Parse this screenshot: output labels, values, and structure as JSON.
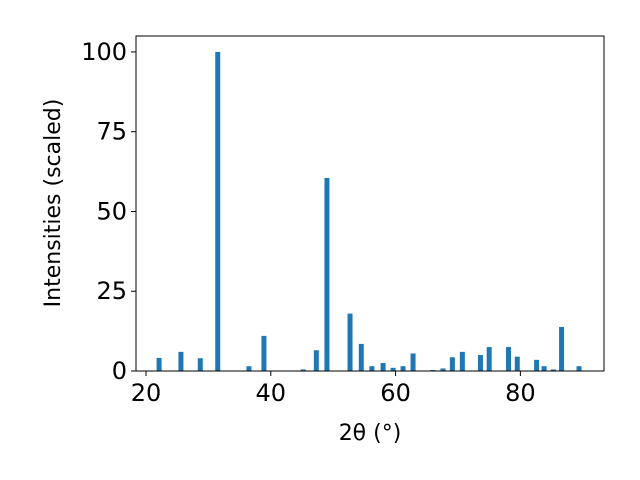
{
  "chart_data": {
    "type": "bar",
    "x_label": "2θ (°)",
    "y_label": "Intensities (scaled)",
    "x": [
      22.1,
      25.6,
      28.7,
      31.5,
      36.5,
      38.9,
      45.2,
      47.3,
      49.0,
      52.7,
      54.5,
      56.2,
      58.0,
      59.6,
      61.2,
      62.8,
      66.0,
      67.6,
      69.1,
      70.7,
      73.6,
      75.0,
      78.1,
      79.5,
      82.6,
      83.8,
      85.3,
      86.6,
      89.4
    ],
    "values": [
      4.1,
      6,
      4,
      100,
      1.5,
      11,
      0.5,
      6.5,
      60.5,
      18,
      8.5,
      1.5,
      2.5,
      1,
      1.5,
      5.5,
      0.3,
      0.8,
      4.3,
      6,
      5,
      7.5,
      7.5,
      4.5,
      3.5,
      1.5,
      0.5,
      13.8,
      1.5
    ],
    "color": "#1f77b4",
    "xlim": [
      18.4,
      93.4
    ],
    "ylim": [
      0,
      105
    ],
    "xticks": [
      20,
      40,
      60,
      80
    ],
    "yticks": [
      0,
      25,
      50,
      75,
      100
    ]
  }
}
